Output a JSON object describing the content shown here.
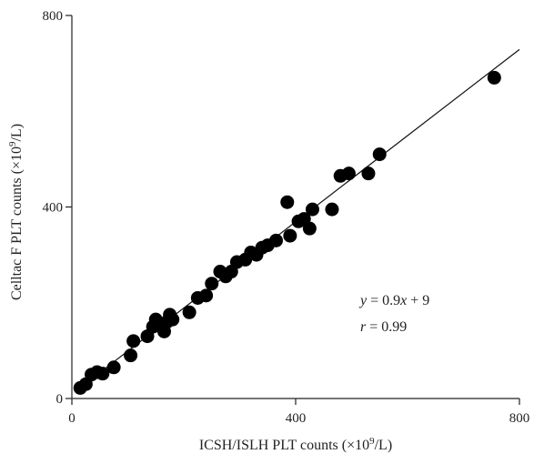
{
  "chart_data": {
    "type": "scatter",
    "xlabel": "ICSH/ISLH PLT counts (×10",
    "xlabel_sup": "9",
    "xlabel_tail": "/L)",
    "ylabel": "Celltac F PLT counts (×10",
    "ylabel_sup": "9",
    "ylabel_tail": "/L)",
    "xlim": [
      0,
      800
    ],
    "ylim": [
      0,
      800
    ],
    "xticks": [
      "0",
      "400",
      "800"
    ],
    "yticks": [
      "0",
      "400",
      "800"
    ],
    "grid": false,
    "fit": {
      "slope": 0.9,
      "intercept": 9,
      "x_range": [
        15,
        800
      ]
    },
    "annotation": {
      "eq_lhs": "y",
      "eq_mid": " = 0.9",
      "eq_x": "x",
      "eq_rhs": " + 9",
      "r_lhs": "r",
      "r_rhs": " = 0.99"
    },
    "points": [
      [
        15,
        22
      ],
      [
        25,
        30
      ],
      [
        35,
        50
      ],
      [
        45,
        55
      ],
      [
        55,
        52
      ],
      [
        75,
        65
      ],
      [
        105,
        90
      ],
      [
        110,
        120
      ],
      [
        135,
        130
      ],
      [
        145,
        150
      ],
      [
        150,
        165
      ],
      [
        160,
        155
      ],
      [
        165,
        140
      ],
      [
        170,
        160
      ],
      [
        175,
        175
      ],
      [
        180,
        165
      ],
      [
        210,
        180
      ],
      [
        225,
        210
      ],
      [
        240,
        215
      ],
      [
        250,
        240
      ],
      [
        265,
        265
      ],
      [
        275,
        255
      ],
      [
        285,
        265
      ],
      [
        295,
        285
      ],
      [
        310,
        290
      ],
      [
        320,
        305
      ],
      [
        330,
        300
      ],
      [
        340,
        315
      ],
      [
        350,
        320
      ],
      [
        365,
        330
      ],
      [
        385,
        410
      ],
      [
        390,
        340
      ],
      [
        405,
        370
      ],
      [
        415,
        375
      ],
      [
        425,
        355
      ],
      [
        430,
        395
      ],
      [
        465,
        395
      ],
      [
        480,
        465
      ],
      [
        495,
        470
      ],
      [
        530,
        470
      ],
      [
        550,
        510
      ],
      [
        755,
        670
      ]
    ]
  }
}
